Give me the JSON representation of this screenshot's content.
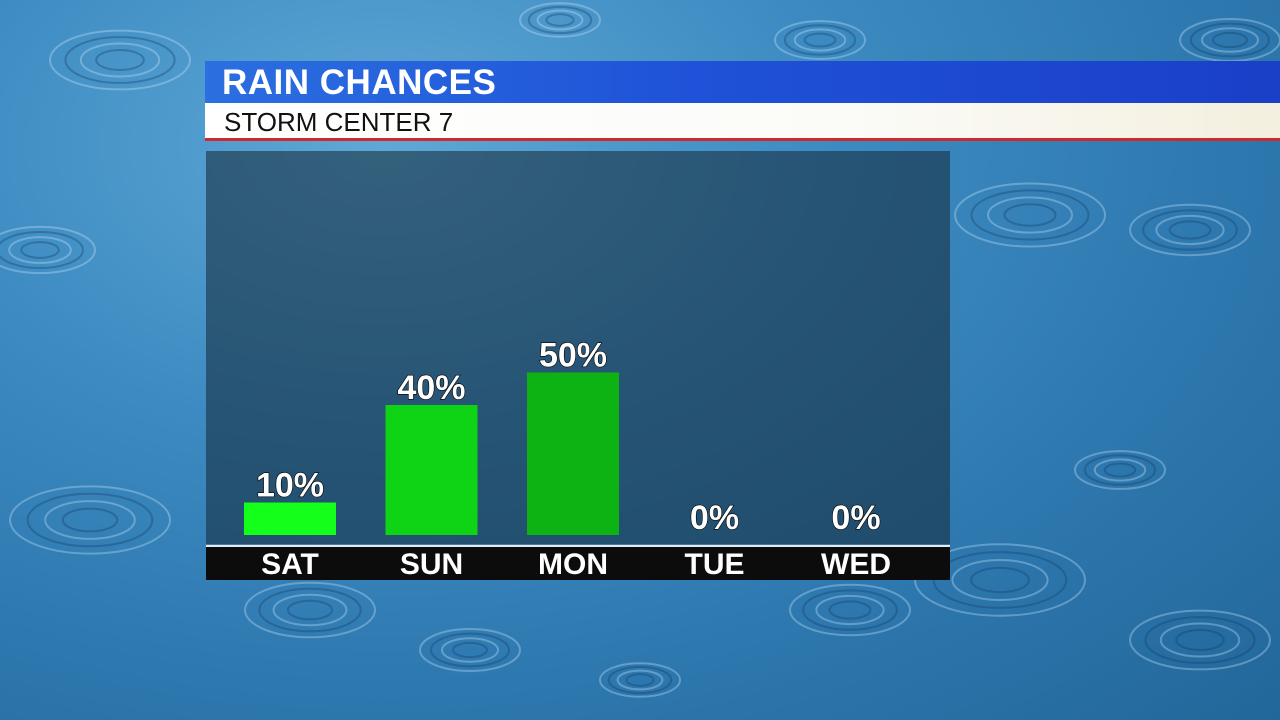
{
  "header": {
    "title": "RAIN CHANCES",
    "subtitle": "STORM CENTER 7"
  },
  "colors": {
    "title_bar": "#1f52d8",
    "subtitle_bar": "#ffffff",
    "accent_line": "#cf2a2a",
    "bar_colors": [
      "#14ff1a",
      "#0fd415",
      "#0cb312",
      "#0cb312",
      "#0cb312"
    ],
    "axis_bar": "#0c0c0c"
  },
  "chart_data": {
    "type": "bar",
    "title": "RAIN CHANCES",
    "subtitle": "STORM CENTER 7",
    "categories": [
      "SAT",
      "SUN",
      "MON",
      "TUE",
      "WED"
    ],
    "values": [
      10,
      40,
      50,
      0,
      0
    ],
    "value_labels": [
      "10%",
      "40%",
      "50%",
      "0%",
      "0%"
    ],
    "ylim": [
      0,
      100
    ],
    "grid": false,
    "legend": "none"
  }
}
